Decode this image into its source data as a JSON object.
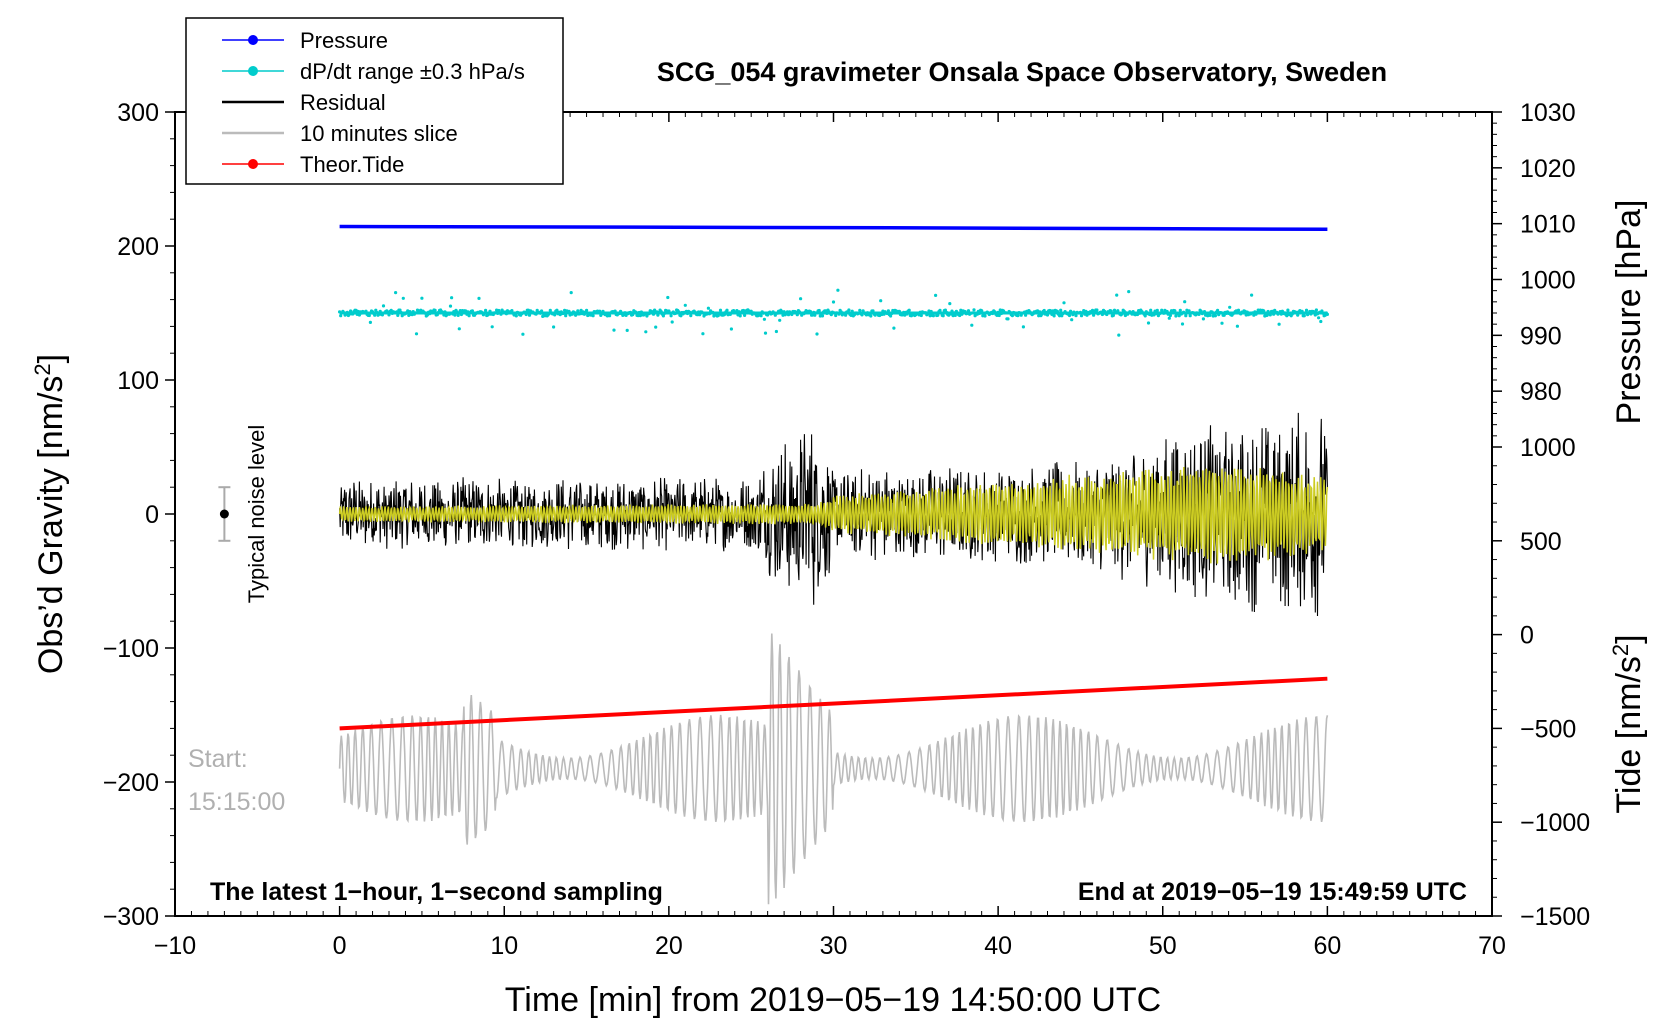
{
  "chart_data": {
    "type": "line",
    "title": "SCG_054 gravimeter Onsala Space Observatory, Sweden",
    "xlabel": "Time [min] from 2019−05−19 14:50:00 UTC",
    "ylabel_left": "Obs’d Gravity",
    "ylabel_left_unit": "[nm/s",
    "ylabel_left_unit_sup": "2",
    "ylabel_left_unit_close": "]",
    "ylabel_right_top": "Pressure [hPa]",
    "ylabel_right_bottom": "Tide",
    "ylabel_right_bottom_unit": "[nm/s",
    "ylabel_right_bottom_unit_sup": "2",
    "ylabel_right_bottom_unit_close": "]",
    "xlim": [
      -10,
      70
    ],
    "ylim_left": [
      -300,
      300
    ],
    "x_ticks": [
      -10,
      0,
      10,
      20,
      30,
      40,
      50,
      60,
      70
    ],
    "x_tick_labels": [
      "−10",
      "0",
      "10",
      "20",
      "30",
      "40",
      "50",
      "60",
      "70"
    ],
    "y_left_ticks": [
      300,
      200,
      100,
      0,
      -100,
      -200,
      -300
    ],
    "y_left_tick_labels": [
      "300",
      "200",
      "100",
      "0",
      "−100",
      "−200",
      "−300"
    ],
    "pressure_ticks": [
      1030,
      1020,
      1010,
      1000,
      990,
      980
    ],
    "pressure_tick_labels": [
      "1030",
      "1020",
      "1010",
      "1000",
      "990",
      "980"
    ],
    "pressure_axis_range": [
      970,
      1030
    ],
    "tide_ticks": [
      1000,
      500,
      0,
      -500,
      -1000,
      -1500
    ],
    "tide_tick_labels": [
      "1000",
      "500",
      "0",
      "−500",
      "−1000",
      "−1500"
    ],
    "tide_axis_range": [
      -1500,
      1000
    ],
    "legend_position": "top-left, outside above plot",
    "legend": [
      {
        "label": "Pressure",
        "color": "#0000ff",
        "marker": true
      },
      {
        "label": "dP/dt range ±0.3 hPa/s",
        "color": "#00cccc",
        "marker": true
      },
      {
        "label": "Residual",
        "color": "#000000",
        "marker": false
      },
      {
        "label": "10 minutes slice",
        "color": "#bbbbbb",
        "marker": false
      },
      {
        "label": "Theor.Tide",
        "color": "#ff0000",
        "marker": true
      }
    ],
    "series": [
      {
        "name": "Pressure",
        "axis": "pressure",
        "x": [
          0,
          30,
          60
        ],
        "values": [
          1009.5,
          1009.3,
          1009.0
        ],
        "color": "#0000ff"
      },
      {
        "name": "dP/dt",
        "axis": "left",
        "x_range": [
          0,
          60
        ],
        "center": 150,
        "spread": 5,
        "color": "#00cccc"
      },
      {
        "name": "Residual",
        "axis": "left",
        "x_range": [
          0,
          60
        ],
        "amplitude_envelope": [
          [
            0,
            28
          ],
          [
            25,
            28
          ],
          [
            26.5,
            55
          ],
          [
            29,
            75
          ],
          [
            30,
            35
          ],
          [
            45,
            40
          ],
          [
            52,
            70
          ],
          [
            60,
            80
          ]
        ],
        "color": "#000000"
      },
      {
        "name": "Residual filtered",
        "axis": "left",
        "x_range": [
          0,
          60
        ],
        "amplitude_envelope": [
          [
            0,
            6
          ],
          [
            29,
            8
          ],
          [
            30,
            14
          ],
          [
            45,
            30
          ],
          [
            54,
            40
          ],
          [
            60,
            28
          ]
        ],
        "color": "#cccc22"
      },
      {
        "name": "10 minutes slice",
        "axis": "left",
        "x_range": [
          0,
          60
        ],
        "center": -190,
        "spread": 40,
        "color": "#bbbbbb"
      },
      {
        "name": "Theor.Tide",
        "axis": "tide",
        "x": [
          0,
          60
        ],
        "values": [
          -500,
          -235
        ],
        "color": "#ff0000"
      }
    ],
    "noise_marker": {
      "x": -7,
      "y": 0,
      "err": 20,
      "label": "Typical noise level"
    },
    "annotations": {
      "start_label": "Start:",
      "start_time": "15:15:00",
      "bottom_left": "The latest 1−hour, 1−second sampling",
      "bottom_right": "End at 2019−05−19 15:49:59 UTC"
    }
  }
}
